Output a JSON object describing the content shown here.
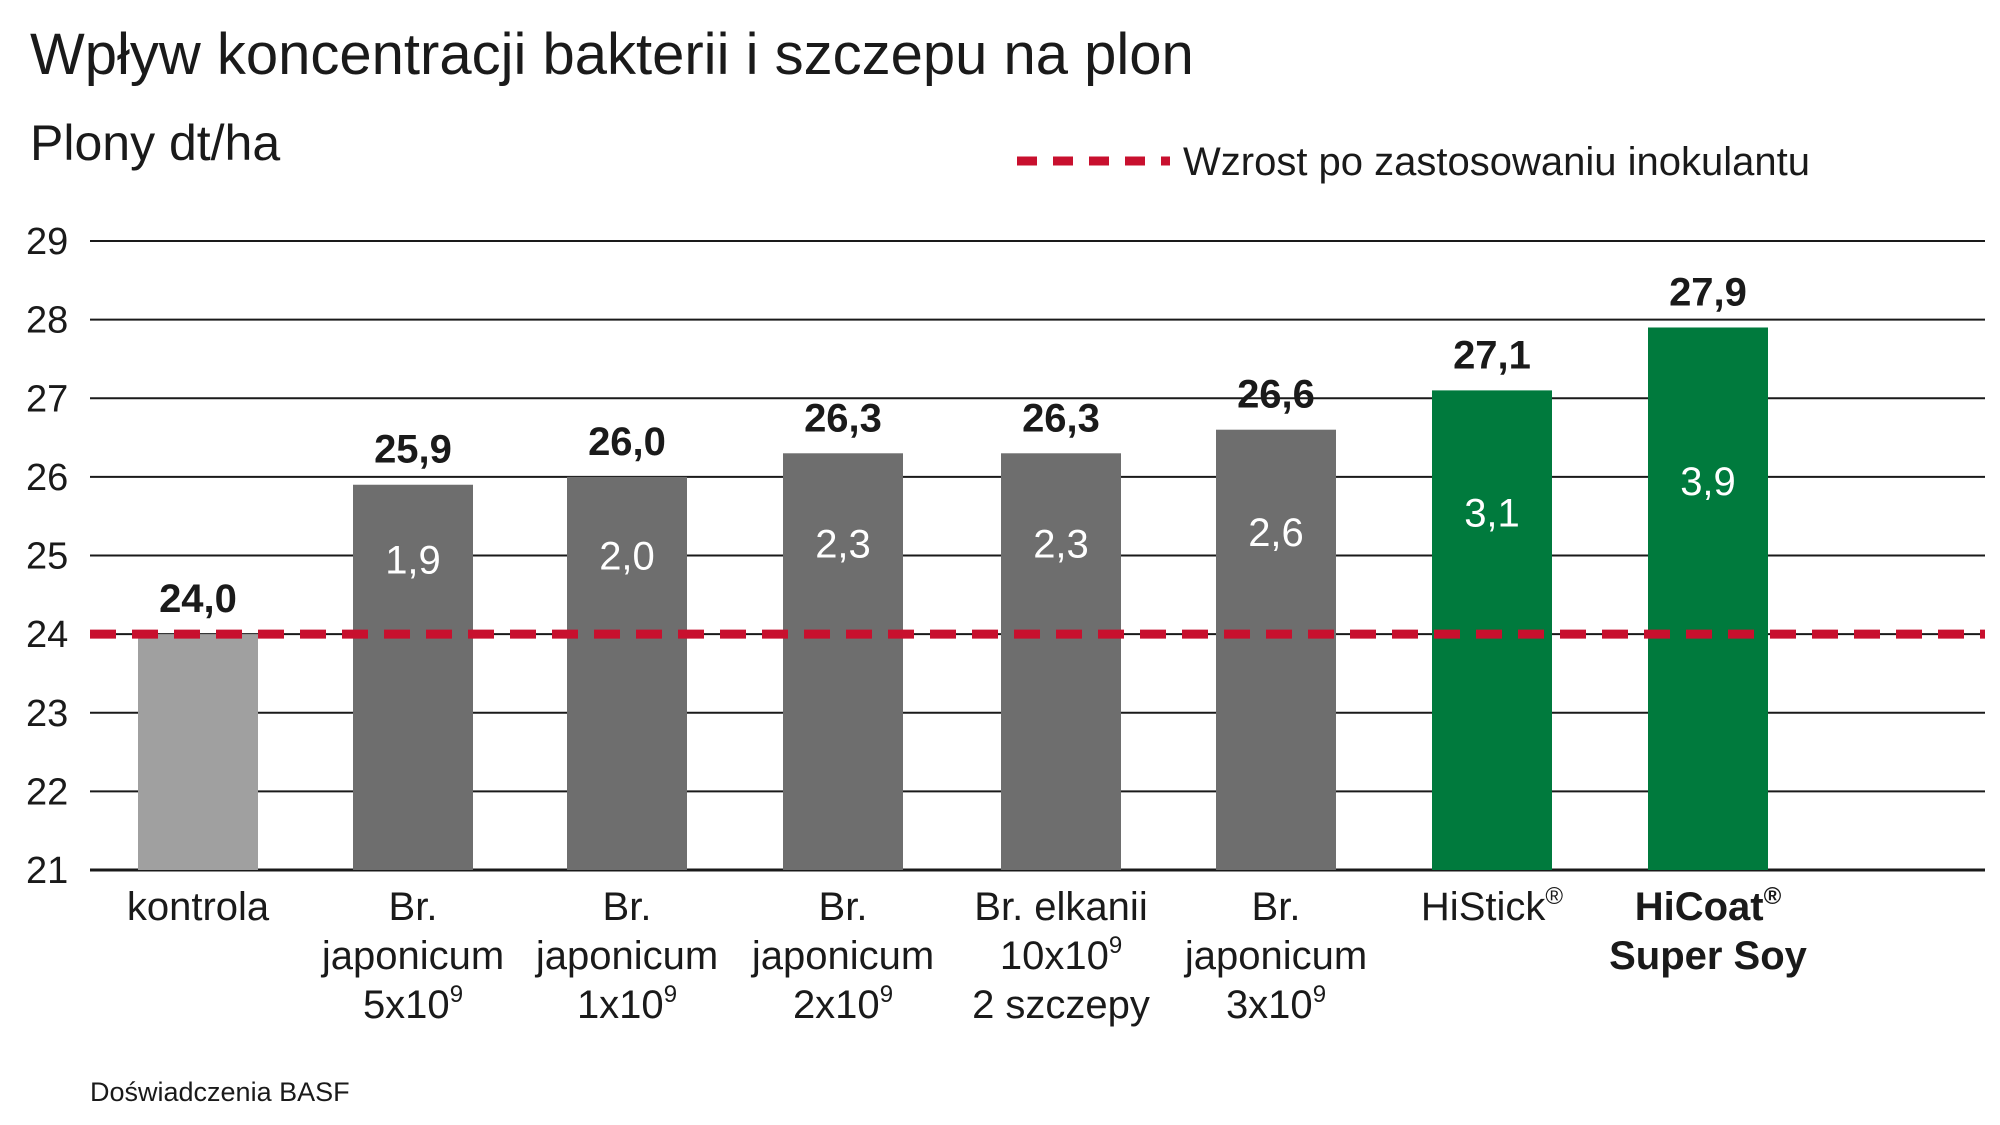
{
  "chart_data": {
    "type": "bar",
    "title": "Wpływ koncentracji bakterii i szczepu na plon",
    "ylabel": "Plony dt/ha",
    "ylim": [
      21,
      29
    ],
    "yticks": [
      21,
      22,
      23,
      24,
      25,
      26,
      27,
      28,
      29
    ],
    "grid": true,
    "legend": {
      "placement": "top-right",
      "label": "Wzrost po zastosowaniu inokulantu"
    },
    "reference_line": {
      "value": 24.0,
      "style": "dashed",
      "color": "#c8102e"
    },
    "categories": [
      {
        "lines": [
          "kontrola"
        ],
        "bold": false
      },
      {
        "lines": [
          "Br.",
          "japonicum",
          "5x10|9"
        ],
        "bold": false
      },
      {
        "lines": [
          "Br.",
          "japonicum",
          "1x10|9"
        ],
        "bold": false
      },
      {
        "lines": [
          "Br.",
          "japonicum",
          "2x10|9"
        ],
        "bold": false
      },
      {
        "lines": [
          "Br. elkanii",
          "10x10|9",
          "2 szczepy"
        ],
        "bold": false
      },
      {
        "lines": [
          "Br.",
          "japonicum",
          "3x10|9"
        ],
        "bold": false
      },
      {
        "lines": [
          "HiStick|®"
        ],
        "bold": false
      },
      {
        "lines": [
          "HiCoat|®",
          "Super Soy"
        ],
        "bold": true
      }
    ],
    "values": [
      24.0,
      25.9,
      26.0,
      26.3,
      26.3,
      26.6,
      27.1,
      27.9
    ],
    "value_labels": [
      "24,0",
      "25,9",
      "26,0",
      "26,3",
      "26,3",
      "26,6",
      "27,1",
      "27,9"
    ],
    "increase_labels": [
      "",
      "1,9",
      "2,0",
      "2,3",
      "2,3",
      "2,6",
      "3,1",
      "3,9"
    ],
    "bar_colors": [
      "#a0a0a0",
      "#6e6e6e",
      "#6e6e6e",
      "#6e6e6e",
      "#6e6e6e",
      "#6e6e6e",
      "#007a3d",
      "#007a3d"
    ]
  },
  "source_note": "Doświadczenia BASF",
  "colors": {
    "grid": "#1a1a1a",
    "reference": "#c8102e"
  }
}
